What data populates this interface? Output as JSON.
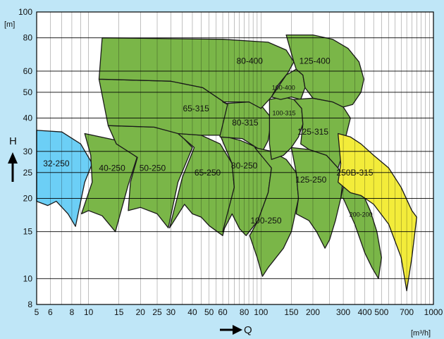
{
  "chart_data": {
    "type": "area",
    "title": "",
    "xlabel": "Q",
    "ylabel": "H",
    "x_unit": "[m³/h]",
    "y_unit": "[m]",
    "x_scale": "log",
    "y_scale": "log",
    "xlim": [
      5,
      1000
    ],
    "ylim": [
      8,
      100
    ],
    "x_ticks": [
      5,
      6,
      8,
      10,
      15,
      20,
      25,
      30,
      40,
      50,
      60,
      80,
      100,
      150,
      200,
      300,
      400,
      500,
      700,
      1000
    ],
    "x_tick_labels": [
      "5",
      "6",
      "8",
      "10",
      "15",
      "20",
      "25",
      "30",
      "40",
      "50",
      "60",
      "80",
      "100",
      "150",
      "200",
      "300",
      "400",
      "500",
      "700",
      "1000"
    ],
    "y_ticks": [
      8,
      10,
      15,
      20,
      25,
      30,
      40,
      50,
      60,
      80,
      100
    ],
    "y_tick_labels": [
      "8",
      "10",
      "15",
      "20",
      "25",
      "30",
      "40",
      "50",
      "60",
      "80",
      "100"
    ],
    "grid": true,
    "colors": {
      "green": "#7ab648",
      "blue": "#6ccff6",
      "yellow": "#f3ec3a",
      "background": "#bfe6f7"
    },
    "zones": [
      {
        "name": "32-250",
        "color": "blue",
        "label_at": [
          6.5,
          27
        ],
        "small": false,
        "outline": [
          [
            5,
            36
          ],
          [
            7,
            35.5
          ],
          [
            9,
            32
          ],
          [
            10.5,
            27
          ],
          [
            9.5,
            23
          ],
          [
            8.4,
            15.7
          ],
          [
            7.6,
            17.5
          ],
          [
            6.5,
            19.5
          ],
          [
            5.8,
            18.8
          ],
          [
            5,
            19.5
          ]
        ]
      },
      {
        "name": "40-250",
        "color": "green",
        "label_at": [
          13.7,
          26
        ],
        "small": false,
        "outline": [
          [
            9.5,
            35
          ],
          [
            14.6,
            33
          ],
          [
            19.1,
            28.5
          ],
          [
            17,
            22.5
          ],
          [
            14.3,
            15
          ],
          [
            12,
            17.2
          ],
          [
            10,
            18
          ],
          [
            9.1,
            17.5
          ],
          [
            10.5,
            23
          ],
          [
            10.3,
            29
          ]
        ]
      },
      {
        "name": "50-250",
        "color": "green",
        "label_at": [
          23.5,
          26
        ],
        "small": false,
        "outline": [
          [
            13,
            37.5
          ],
          [
            24,
            37
          ],
          [
            33.5,
            35
          ],
          [
            40,
            31
          ],
          [
            33,
            23
          ],
          [
            29,
            15.5
          ],
          [
            25,
            17.5
          ],
          [
            20,
            18.5
          ],
          [
            17,
            18
          ],
          [
            17.5,
            23
          ],
          [
            19.2,
            28.5
          ],
          [
            14.5,
            32
          ]
        ]
      },
      {
        "name": "65-250",
        "color": "green",
        "label_at": [
          49,
          25
        ],
        "small": false,
        "outline": [
          [
            33,
            35
          ],
          [
            45,
            34.5
          ],
          [
            58,
            32
          ],
          [
            68,
            27
          ],
          [
            70,
            22
          ],
          [
            60,
            14.5
          ],
          [
            50,
            15.8
          ],
          [
            45,
            17
          ],
          [
            40,
            17.5
          ],
          [
            36,
            19
          ],
          [
            29.5,
            15.5
          ],
          [
            35,
            24
          ],
          [
            41,
            31
          ]
        ]
      },
      {
        "name": "80-250",
        "color": "green",
        "label_at": [
          80,
          26.5
        ],
        "small": false,
        "outline": [
          [
            58,
            34.5
          ],
          [
            76,
            33
          ],
          [
            95,
            31
          ],
          [
            115,
            26
          ],
          [
            110,
            21
          ],
          [
            96,
            16.5
          ],
          [
            82,
            14.5
          ],
          [
            75,
            15.4
          ],
          [
            68,
            17.5
          ],
          [
            60,
            15
          ],
          [
            70,
            22
          ],
          [
            68,
            27
          ]
        ]
      },
      {
        "name": "80-315",
        "color": "green",
        "label_at": [
          81,
          38.5
        ],
        "small": false,
        "outline": [
          [
            52,
            45
          ],
          [
            85,
            46
          ],
          [
            102,
            44
          ],
          [
            115,
            40
          ],
          [
            110,
            33
          ],
          [
            102,
            30
          ],
          [
            78,
            33.5
          ],
          [
            58,
            34
          ]
        ]
      },
      {
        "name": "65-315",
        "color": "green",
        "label_at": [
          42,
          43.5
        ],
        "small": false,
        "outline": [
          [
            11.5,
            56
          ],
          [
            30,
            55
          ],
          [
            46,
            52
          ],
          [
            64,
            45
          ],
          [
            58,
            34.5
          ],
          [
            45,
            34.5
          ],
          [
            33,
            35
          ],
          [
            24,
            37
          ],
          [
            13,
            37.5
          ]
        ]
      },
      {
        "name": "80-400",
        "color": "green",
        "label_at": [
          86,
          65.5
        ],
        "small": false,
        "outline": [
          [
            12,
            80
          ],
          [
            60,
            79
          ],
          [
            110,
            77
          ],
          [
            140,
            72
          ],
          [
            155,
            65
          ],
          [
            143,
            59
          ],
          [
            125,
            53
          ],
          [
            115,
            48
          ],
          [
            100,
            43.5
          ],
          [
            85,
            46
          ],
          [
            60,
            46
          ],
          [
            64,
            45
          ],
          [
            46,
            52
          ],
          [
            30,
            55
          ],
          [
            11.5,
            56
          ]
        ]
      },
      {
        "name": "100-250",
        "color": "green",
        "label_at": [
          107,
          16.5
        ],
        "small": false,
        "outline": [
          [
            92,
            31
          ],
          [
            115,
            30
          ],
          [
            140,
            28
          ],
          [
            160,
            25
          ],
          [
            165,
            20
          ],
          [
            150,
            15
          ],
          [
            135,
            13
          ],
          [
            110,
            11
          ],
          [
            102,
            10.2
          ],
          [
            95,
            12
          ],
          [
            86,
            14.5
          ],
          [
            96,
            16.5
          ],
          [
            110,
            21
          ],
          [
            115,
            26
          ]
        ]
      },
      {
        "name": "100-315",
        "color": "green",
        "label_at": [
          136,
          42
        ],
        "small": true,
        "outline": [
          [
            112,
            47
          ],
          [
            135,
            48
          ],
          [
            155,
            47
          ],
          [
            172,
            43.5
          ],
          [
            175,
            38
          ],
          [
            165,
            34
          ],
          [
            150,
            31
          ],
          [
            135,
            29
          ],
          [
            115,
            28
          ],
          [
            112,
            32
          ],
          [
            112,
            40
          ]
        ]
      },
      {
        "name": "100-400",
        "color": "green",
        "label_at": [
          135,
          52.3
        ],
        "small": true,
        "outline": [
          [
            115,
            48
          ],
          [
            140,
            58
          ],
          [
            160,
            61
          ],
          [
            175,
            58
          ],
          [
            180,
            52
          ],
          [
            170,
            47
          ],
          [
            150,
            48
          ],
          [
            130,
            47
          ]
        ]
      },
      {
        "name": "125-250",
        "color": "green",
        "label_at": [
          195,
          23.5
        ],
        "small": false,
        "outline": [
          [
            150,
            31
          ],
          [
            190,
            30.5
          ],
          [
            240,
            29
          ],
          [
            280,
            26
          ],
          [
            300,
            24
          ],
          [
            290,
            20
          ],
          [
            270,
            16.5
          ],
          [
            250,
            14
          ],
          [
            235,
            13
          ],
          [
            210,
            15
          ],
          [
            190,
            16.5
          ],
          [
            160,
            17.5
          ],
          [
            165,
            20
          ],
          [
            160,
            25
          ]
        ]
      },
      {
        "name": "200-200",
        "color": "green",
        "label_at": [
          380,
          17.5
        ],
        "small": true,
        "outline": [
          [
            300,
            22
          ],
          [
            360,
            21
          ],
          [
            400,
            20
          ],
          [
            430,
            18
          ],
          [
            470,
            15
          ],
          [
            500,
            12
          ],
          [
            480,
            10
          ],
          [
            440,
            11
          ],
          [
            400,
            12.5
          ],
          [
            350,
            16
          ],
          [
            300,
            20
          ],
          [
            290,
            20
          ]
        ]
      },
      {
        "name": "125-315",
        "color": "green",
        "label_at": [
          200,
          35.5
        ],
        "small": false,
        "outline": [
          [
            155,
            47
          ],
          [
            200,
            47.5
          ],
          [
            260,
            46
          ],
          [
            300,
            44
          ],
          [
            330,
            40
          ],
          [
            310,
            34
          ],
          [
            300,
            30
          ],
          [
            280,
            26
          ],
          [
            240,
            29
          ],
          [
            190,
            30.5
          ],
          [
            170,
            32
          ],
          [
            175,
            38
          ],
          [
            172,
            43.5
          ]
        ]
      },
      {
        "name": "125-400",
        "color": "green",
        "label_at": [
          205,
          65.5
        ],
        "small": false,
        "outline": [
          [
            140,
            82
          ],
          [
            200,
            82
          ],
          [
            260,
            79
          ],
          [
            320,
            73
          ],
          [
            370,
            65
          ],
          [
            395,
            56
          ],
          [
            380,
            50
          ],
          [
            340,
            45
          ],
          [
            300,
            44
          ],
          [
            260,
            46
          ],
          [
            200,
            47.5
          ],
          [
            180,
            52
          ],
          [
            175,
            58
          ],
          [
            160,
            61
          ],
          [
            155,
            65
          ]
        ]
      },
      {
        "name": "250B-315",
        "color": "yellow",
        "label_at": [
          350,
          25
        ],
        "small": false,
        "outline": [
          [
            280,
            35
          ],
          [
            330,
            34
          ],
          [
            380,
            32
          ],
          [
            450,
            29
          ],
          [
            550,
            26
          ],
          [
            650,
            22
          ],
          [
            750,
            18
          ],
          [
            800,
            17
          ],
          [
            750,
            12
          ],
          [
            700,
            9
          ],
          [
            650,
            12
          ],
          [
            550,
            16
          ],
          [
            450,
            19
          ],
          [
            380,
            20.5
          ],
          [
            330,
            21
          ],
          [
            280,
            23
          ],
          [
            290,
            27
          ]
        ]
      }
    ]
  }
}
